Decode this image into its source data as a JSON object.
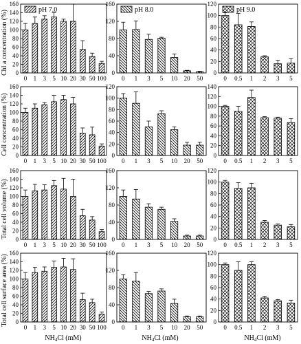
{
  "figure": {
    "x_axis_label_html": "NH4Cl (mM)",
    "row_ylabels": [
      "Chl a concentration (%)",
      "Cell concentration (%)",
      "Total cell volume (%)",
      "Total cell surface area (%)"
    ]
  },
  "chart_data": [
    {
      "type": "bar",
      "row": 0,
      "col": 0,
      "pattern": "diag-right",
      "legend": "pH 7.0",
      "categories": [
        "0",
        "1",
        "3",
        "5",
        "10",
        "20",
        "30",
        "50",
        "100"
      ],
      "values": [
        100,
        115,
        125,
        130,
        120,
        120,
        55,
        38,
        22
      ],
      "errors": [
        15,
        15,
        8,
        10,
        5,
        40,
        20,
        8,
        5
      ],
      "ylim": [
        0,
        160
      ],
      "yticks": [
        0,
        20,
        40,
        60,
        80,
        100,
        120,
        140,
        160
      ]
    },
    {
      "type": "bar",
      "row": 0,
      "col": 1,
      "pattern": "diag-left",
      "legend": "pH 8.0",
      "categories": [
        "0",
        "1",
        "3",
        "5",
        "10",
        "20",
        "50"
      ],
      "values": [
        100,
        101,
        78,
        81,
        36,
        5,
        3
      ],
      "errors": [
        18,
        20,
        12,
        2,
        8,
        1,
        1
      ],
      "ylim": [
        0,
        160
      ],
      "yticks": [
        0,
        40,
        80,
        120,
        160
      ]
    },
    {
      "type": "bar",
      "row": 0,
      "col": 2,
      "pattern": "cross",
      "legend": "pH 9.0",
      "categories": [
        "0",
        "0.5",
        "1",
        "2",
        "3",
        "5"
      ],
      "values": [
        100,
        84,
        81,
        28,
        16,
        17
      ],
      "errors": [
        5,
        20,
        8,
        2,
        6,
        8
      ],
      "ylim": [
        0,
        120
      ],
      "yticks": [
        0,
        20,
        40,
        60,
        80,
        100,
        120
      ]
    },
    {
      "type": "bar",
      "row": 1,
      "col": 0,
      "pattern": "diag-right",
      "categories": [
        "0",
        "1",
        "3",
        "5",
        "10",
        "20",
        "30",
        "50",
        "100"
      ],
      "values": [
        100,
        110,
        118,
        125,
        130,
        120,
        52,
        48,
        22
      ],
      "errors": [
        10,
        10,
        5,
        15,
        10,
        15,
        12,
        18,
        5
      ],
      "ylim": [
        0,
        160
      ],
      "yticks": [
        0,
        20,
        40,
        60,
        80,
        100,
        120,
        140,
        160
      ]
    },
    {
      "type": "bar",
      "row": 1,
      "col": 1,
      "pattern": "diag-left",
      "categories": [
        "0",
        "1",
        "3",
        "5",
        "10",
        "20",
        "50"
      ],
      "values": [
        100,
        91,
        50,
        73,
        45,
        18,
        18
      ],
      "errors": [
        8,
        20,
        10,
        5,
        5,
        5,
        5
      ],
      "ylim": [
        0,
        120
      ],
      "yticks": [
        0,
        20,
        40,
        60,
        80,
        100,
        120
      ]
    },
    {
      "type": "bar",
      "row": 1,
      "col": 2,
      "pattern": "cross",
      "categories": [
        "0",
        "0.5",
        "1",
        "2",
        "3",
        "5"
      ],
      "values": [
        100,
        90,
        118,
        77,
        76,
        67
      ],
      "errors": [
        2,
        10,
        15,
        2,
        2,
        8
      ],
      "ylim": [
        0,
        140
      ],
      "yticks": [
        0,
        20,
        40,
        60,
        80,
        100,
        120,
        140
      ]
    },
    {
      "type": "bar",
      "row": 2,
      "col": 0,
      "pattern": "diag-right",
      "categories": [
        "0",
        "1",
        "3",
        "5",
        "10",
        "20",
        "30",
        "50",
        "100"
      ],
      "values": [
        100,
        113,
        115,
        125,
        117,
        100,
        55,
        45,
        18
      ],
      "errors": [
        15,
        15,
        12,
        12,
        25,
        40,
        15,
        8,
        5
      ],
      "ylim": [
        0,
        160
      ],
      "yticks": [
        0,
        20,
        40,
        60,
        80,
        100,
        120,
        140,
        160
      ]
    },
    {
      "type": "bar",
      "row": 2,
      "col": 1,
      "pattern": "diag-left",
      "categories": [
        "0",
        "1",
        "3",
        "5",
        "10",
        "20",
        "50"
      ],
      "values": [
        100,
        94,
        75,
        70,
        42,
        8,
        8
      ],
      "errors": [
        15,
        22,
        8,
        5,
        6,
        2,
        2
      ],
      "ylim": [
        0,
        160
      ],
      "yticks": [
        0,
        40,
        80,
        120,
        160
      ]
    },
    {
      "type": "bar",
      "row": 2,
      "col": 2,
      "pattern": "cross",
      "categories": [
        "0",
        "0.5",
        "1",
        "2",
        "3",
        "5"
      ],
      "values": [
        100,
        89,
        90,
        30,
        25,
        22
      ],
      "errors": [
        3,
        10,
        8,
        3,
        2,
        4
      ],
      "ylim": [
        0,
        120
      ],
      "yticks": [
        0,
        20,
        40,
        60,
        80,
        100,
        120
      ]
    },
    {
      "type": "bar",
      "row": 3,
      "col": 0,
      "pattern": "diag-right",
      "categories": [
        "0",
        "1",
        "3",
        "5",
        "10",
        "20",
        "30",
        "50",
        "100"
      ],
      "values": [
        100,
        115,
        118,
        127,
        128,
        122,
        52,
        45,
        18
      ],
      "errors": [
        15,
        12,
        10,
        15,
        20,
        25,
        15,
        8,
        5
      ],
      "ylim": [
        0,
        160
      ],
      "yticks": [
        0,
        20,
        40,
        60,
        80,
        100,
        120,
        140,
        160
      ]
    },
    {
      "type": "bar",
      "row": 3,
      "col": 1,
      "pattern": "diag-left",
      "categories": [
        "0",
        "1",
        "3",
        "5",
        "10",
        "20",
        "50"
      ],
      "values": [
        100,
        95,
        66,
        72,
        43,
        12,
        12
      ],
      "errors": [
        10,
        20,
        5,
        5,
        10,
        2,
        2
      ],
      "ylim": [
        0,
        160
      ],
      "yticks": [
        0,
        40,
        80,
        120,
        160
      ]
    },
    {
      "type": "bar",
      "row": 3,
      "col": 2,
      "pattern": "cross",
      "categories": [
        "0",
        "0.5",
        "1",
        "2",
        "3",
        "5"
      ],
      "values": [
        100,
        90,
        100,
        42,
        37,
        33
      ],
      "errors": [
        3,
        15,
        5,
        3,
        2,
        5
      ],
      "ylim": [
        0,
        120
      ],
      "yticks": [
        0,
        20,
        40,
        60,
        80,
        100,
        120
      ]
    }
  ]
}
